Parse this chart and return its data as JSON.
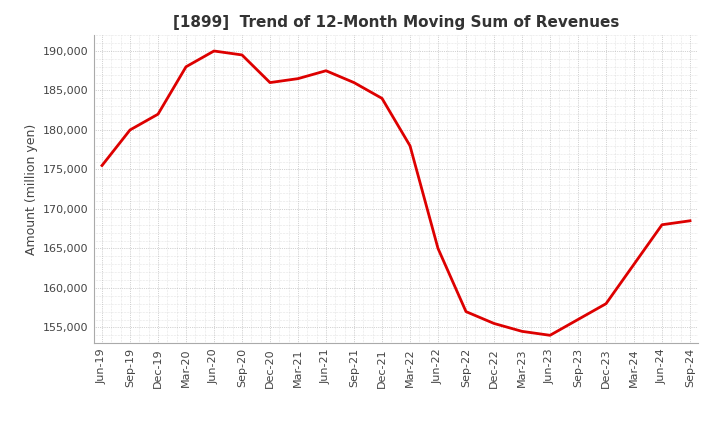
{
  "title": "[1899]  Trend of 12-Month Moving Sum of Revenues",
  "ylabel": "Amount (million yen)",
  "background_color": "#ffffff",
  "grid_color": "#aaaaaa",
  "line_color": "#dd0000",
  "x_labels": [
    "Jun-19",
    "Sep-19",
    "Dec-19",
    "Mar-20",
    "Jun-20",
    "Sep-20",
    "Dec-20",
    "Mar-21",
    "Jun-21",
    "Sep-21",
    "Dec-21",
    "Mar-22",
    "Jun-22",
    "Sep-22",
    "Dec-22",
    "Mar-23",
    "Jun-23",
    "Sep-23",
    "Dec-23",
    "Mar-24",
    "Jun-24",
    "Sep-24"
  ],
  "values": [
    175500,
    180000,
    182000,
    188000,
    190000,
    189500,
    186000,
    186500,
    187500,
    186000,
    184000,
    178000,
    165000,
    157000,
    155500,
    154500,
    154000,
    156000,
    158000,
    163000,
    168000,
    168500
  ],
  "ylim": [
    153000,
    192000
  ],
  "yticks": [
    155000,
    160000,
    165000,
    170000,
    175000,
    180000,
    185000,
    190000
  ],
  "title_fontsize": 11,
  "label_fontsize": 9,
  "tick_fontsize": 8
}
